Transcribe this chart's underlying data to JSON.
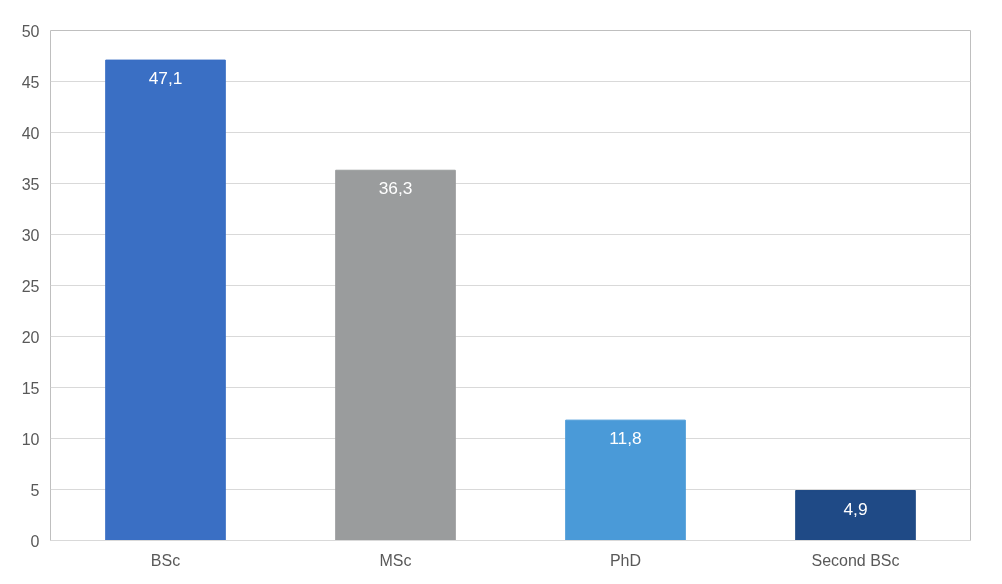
{
  "chart_data": {
    "type": "bar",
    "categories": [
      "BSc",
      "MSc",
      "PhD",
      "Second BSc"
    ],
    "values": [
      47.1,
      36.3,
      11.8,
      4.9
    ],
    "colors": [
      "#3a6fc4",
      "#9a9c9d",
      "#4a9ad8",
      "#1f4a86"
    ],
    "value_labels": [
      "47,1",
      "36,3",
      "11,8",
      "4,9"
    ],
    "ylim": [
      0,
      50
    ],
    "yticks": [
      0,
      5,
      10,
      15,
      20,
      25,
      30,
      35,
      40,
      45,
      50
    ],
    "grid": "y"
  }
}
